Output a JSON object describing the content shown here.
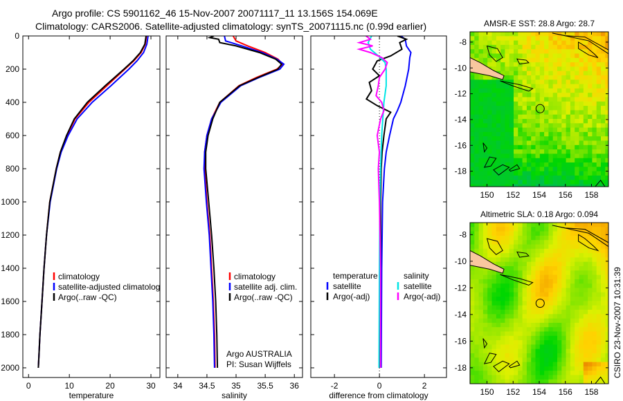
{
  "title_line1": "Argo profile: CS 5901162_46 15-Nov-2007 20071117_11 13.156S 154.069E",
  "title_line2": "Climatology: CARS2006. Satellite-adjusted climatology: synTS_20071115.nc (0.99d earlier)",
  "credit": "CSIRO 23-Nov-2007 10:31:39",
  "colors": {
    "climatology": "#ff0000",
    "satellite": "#0000ff",
    "argo": "#000000",
    "sal_satellite": "#00e5e5",
    "sal_argo": "#ff00ff",
    "land": "#f9c79f"
  },
  "chart_data": [
    {
      "type": "line",
      "xlabel": "temperature",
      "ylabel": "",
      "xlim": [
        -1.4,
        32.2
      ],
      "ylim": [
        2050,
        0
      ],
      "xticks": [
        "0",
        "10",
        "20",
        "30"
      ],
      "xtick_values": [
        0,
        10,
        20,
        30
      ],
      "yticks": [
        "0",
        "200",
        "400",
        "600",
        "800",
        "1000",
        "1200",
        "1400",
        "1600",
        "1800",
        "2000"
      ],
      "ytick_values": [
        0,
        200,
        400,
        600,
        800,
        1000,
        1200,
        1400,
        1600,
        1800,
        2000
      ],
      "legend": [
        "climatology",
        "satellite-adjusted climatology",
        "Argo(..raw -QC)"
      ],
      "series": [
        {
          "name": "climatology",
          "color": "#ff0000",
          "depth": [
            0,
            50,
            100,
            150,
            200,
            300,
            400,
            500,
            600,
            700,
            800,
            1000,
            1200,
            1400,
            1600,
            1800,
            2000
          ],
          "values": [
            28.9,
            28.6,
            27.6,
            25.8,
            23.6,
            19.2,
            14.8,
            11.4,
            9.4,
            7.8,
            6.8,
            5.2,
            4.4,
            3.8,
            3.3,
            2.8,
            2.4
          ]
        },
        {
          "name": "satellite-adjusted climatology",
          "color": "#0000ff",
          "depth": [
            0,
            50,
            100,
            150,
            200,
            300,
            400,
            500,
            600,
            700,
            800,
            1000,
            1200,
            1400,
            1600,
            1800,
            2000
          ],
          "values": [
            29.3,
            29.0,
            28.2,
            26.6,
            24.6,
            20.2,
            15.6,
            11.9,
            9.7,
            8.0,
            6.9,
            5.3,
            4.4,
            3.8,
            3.3,
            2.8,
            2.4
          ]
        },
        {
          "name": "Argo(..raw -QC)",
          "color": "#000000",
          "depth": [
            0,
            50,
            100,
            150,
            200,
            300,
            400,
            500,
            600,
            700,
            800,
            1000,
            1200,
            1400,
            1600,
            1800,
            2000
          ],
          "values": [
            28.8,
            28.5,
            27.4,
            25.6,
            23.4,
            18.8,
            14.4,
            11.2,
            9.3,
            7.8,
            6.8,
            5.2,
            4.4,
            3.8,
            3.3,
            2.8,
            2.4
          ]
        }
      ]
    },
    {
      "type": "line",
      "xlabel": "salinity",
      "xlim": [
        33.8,
        36.14
      ],
      "ylim": [
        2050,
        0
      ],
      "xticks": [
        "34",
        "34.5",
        "35",
        "35.5",
        "36"
      ],
      "xtick_values": [
        34,
        34.5,
        35,
        35.5,
        36
      ],
      "legend": [
        "climatology",
        "satellite adj. clim.",
        "Argo(..raw -QC)"
      ],
      "annotation": [
        "Argo AUSTRALIA",
        "PI: Susan Wijffels"
      ],
      "series": [
        {
          "name": "climatology",
          "color": "#ff0000",
          "depth": [
            0,
            30,
            60,
            100,
            140,
            170,
            200,
            250,
            300,
            400,
            500,
            600,
            700,
            800,
            1000,
            1200,
            1400,
            1600,
            1800,
            2000
          ],
          "values": [
            34.95,
            35.0,
            35.2,
            35.5,
            35.72,
            35.8,
            35.7,
            35.35,
            35.05,
            34.72,
            34.58,
            34.5,
            34.46,
            34.46,
            34.5,
            34.55,
            34.58,
            34.61,
            34.63,
            34.64
          ]
        },
        {
          "name": "satellite adj. clim.",
          "color": "#0000ff",
          "depth": [
            0,
            30,
            60,
            100,
            140,
            170,
            200,
            250,
            300,
            400,
            500,
            600,
            700,
            800,
            1000,
            1200,
            1400,
            1600,
            1800,
            2000
          ],
          "values": [
            34.8,
            34.82,
            35.1,
            35.45,
            35.7,
            35.82,
            35.75,
            35.4,
            35.08,
            34.74,
            34.58,
            34.5,
            34.46,
            34.45,
            34.49,
            34.54,
            34.57,
            34.6,
            34.62,
            34.63
          ]
        },
        {
          "name": "Argo(..raw -QC)",
          "color": "#000000",
          "depth": [
            0,
            10,
            20,
            40,
            60,
            100,
            140,
            170,
            200,
            250,
            300,
            400,
            500,
            600,
            700,
            800,
            1000,
            1200,
            1400,
            1600,
            1800,
            2000
          ],
          "values": [
            34.62,
            34.55,
            34.7,
            34.72,
            35.0,
            35.4,
            35.68,
            35.78,
            35.72,
            35.38,
            35.06,
            34.72,
            34.6,
            34.52,
            34.48,
            34.48,
            34.53,
            34.58,
            34.62,
            34.65,
            34.67,
            34.68
          ]
        }
      ]
    },
    {
      "type": "line",
      "xlabel": "difference from climatology",
      "xlim": [
        -3.05,
        2.98
      ],
      "ylim": [
        2050,
        0
      ],
      "xticks": [
        "-2",
        "0",
        "2"
      ],
      "xtick_values": [
        -2,
        0,
        2
      ],
      "legend_temperature_title": "temperature",
      "legend_salinity_title": "salinity",
      "legend": [
        "satellite",
        "Argo(-adj)",
        "satellite",
        "Argo(-adj)"
      ],
      "series": [
        {
          "name": "temperature satellite",
          "color": "#0000ff",
          "depth": [
            0,
            20,
            60,
            100,
            130,
            200,
            300,
            400,
            450,
            500,
            600,
            700,
            800,
            1000,
            1400,
            2000
          ],
          "values": [
            0.95,
            1.15,
            1.2,
            1.4,
            1.35,
            1.3,
            1.15,
            0.95,
            0.8,
            0.62,
            0.45,
            0.3,
            0.22,
            0.14,
            0.1,
            0.08
          ]
        },
        {
          "name": "temperature Argo(-adj)",
          "color": "#000000",
          "depth": [
            0,
            20,
            40,
            80,
            120,
            150,
            200,
            240,
            280,
            330,
            380,
            420,
            460,
            500,
            600,
            700,
            800,
            1000,
            1400,
            2000
          ],
          "values": [
            0.8,
            1.2,
            0.9,
            1.0,
            0.5,
            -0.1,
            -0.3,
            0.0,
            -0.45,
            -0.35,
            -0.58,
            -0.1,
            0.5,
            0.3,
            0.2,
            0.12,
            0.08,
            0.05,
            0.05,
            0.04
          ]
        },
        {
          "name": "salinity satellite",
          "color": "#00e5e5",
          "depth": [
            0,
            40,
            80,
            120,
            160,
            200,
            300,
            400,
            500,
            600,
            800,
            1000,
            1400,
            2000
          ],
          "values": [
            -0.35,
            -0.5,
            -0.4,
            -0.05,
            0.25,
            0.3,
            0.3,
            0.2,
            0.15,
            0.1,
            0.05,
            0.02,
            0.0,
            -0.02
          ]
        },
        {
          "name": "salinity Argo(-adj)",
          "color": "#ff00ff",
          "depth": [
            0,
            20,
            40,
            60,
            80,
            100,
            130,
            160,
            200,
            250,
            300,
            360,
            400,
            450,
            500,
            600,
            700,
            800,
            1000,
            1400,
            2000
          ],
          "values": [
            -0.6,
            -0.4,
            -0.9,
            -0.3,
            -0.9,
            -0.4,
            0.1,
            0.35,
            0.25,
            0.0,
            -0.05,
            -0.15,
            0.1,
            0.2,
            0.05,
            -0.1,
            0.0,
            -0.05,
            0.0,
            0.05,
            0.05
          ]
        }
      ]
    },
    {
      "type": "heatmap",
      "title": "AMSR-E SST: 28.8 Argo: 28.7",
      "xlim": [
        148.7,
        159.3
      ],
      "ylim": [
        -19.2,
        -7.2
      ],
      "xticks": [
        "150",
        "152",
        "154",
        "156",
        "158"
      ],
      "xtick_values": [
        150,
        152,
        154,
        156,
        158
      ],
      "yticks": [
        "-8",
        "-10",
        "-12",
        "-14",
        "-16",
        "-18"
      ],
      "ytick_values": [
        -8,
        -10,
        -12,
        -14,
        -16,
        -18
      ],
      "argo_position": {
        "lon": 154.069,
        "lat": -13.156
      }
    },
    {
      "type": "heatmap",
      "title": "Altimetric SLA: 0.18 Argo: 0.094",
      "xlim": [
        148.7,
        159.3
      ],
      "ylim": [
        -19.2,
        -7.1
      ],
      "xticks": [
        "150",
        "152",
        "154",
        "156",
        "158"
      ],
      "xtick_values": [
        150,
        152,
        154,
        156,
        158
      ],
      "yticks": [
        "-8",
        "-10",
        "-12",
        "-14",
        "-16",
        "-18"
      ],
      "ytick_values": [
        -8,
        -10,
        -12,
        -14,
        -16,
        -18
      ],
      "argo_position": {
        "lon": 154.069,
        "lat": -13.156
      }
    }
  ]
}
